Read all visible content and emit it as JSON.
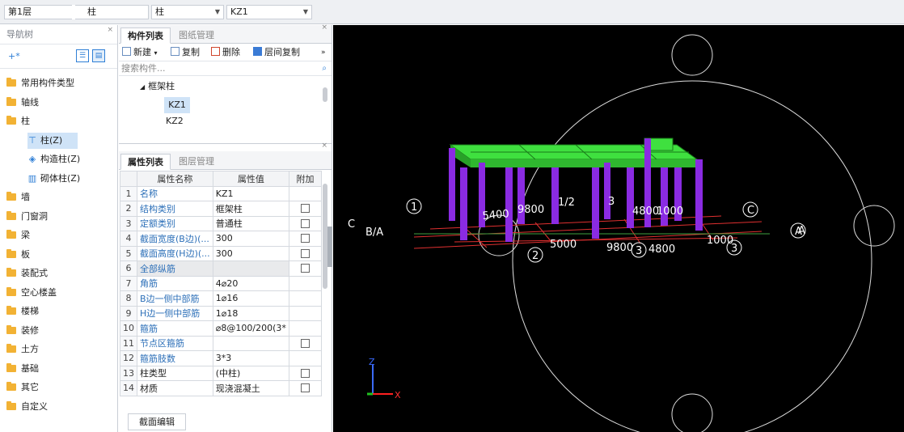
{
  "toolbar_top": {
    "floor": "第1层",
    "category": "柱",
    "type": "柱",
    "component": "KZ1"
  },
  "nav_panel": {
    "title": "导航树",
    "close": "×",
    "items": [
      {
        "label": "常用构件类型"
      },
      {
        "label": "轴线"
      },
      {
        "label": "柱"
      },
      {
        "label": "墙"
      },
      {
        "label": "门窗洞"
      },
      {
        "label": "梁"
      },
      {
        "label": "板"
      },
      {
        "label": "装配式"
      },
      {
        "label": "空心楼盖"
      },
      {
        "label": "楼梯"
      },
      {
        "label": "装修"
      },
      {
        "label": "土方"
      },
      {
        "label": "基础"
      },
      {
        "label": "其它"
      },
      {
        "label": "自定义"
      }
    ],
    "sub_items": [
      {
        "label": "柱(Z)",
        "icon": "column-icon"
      },
      {
        "label": "构造柱(Z)",
        "icon": "constructional-column-icon"
      },
      {
        "label": "砌体柱(Z)",
        "icon": "masonry-column-icon"
      }
    ]
  },
  "component_panel": {
    "tab_active": "构件列表",
    "tab_inactive": "图纸管理",
    "close": "×",
    "tb_new": "新建",
    "tb_copy": "复制",
    "tb_delete": "删除",
    "tb_layer_copy": "层间复制",
    "more": "»",
    "search_placeholder": "搜索构件...",
    "group": "框架柱",
    "items": [
      "KZ1",
      "KZ2"
    ]
  },
  "attr_panel": {
    "tab_active": "属性列表",
    "tab_inactive": "图层管理",
    "close": "×",
    "col_name": "属性名称",
    "col_value": "属性值",
    "col_extra": "附加",
    "rows": [
      {
        "n": "1",
        "name": "名称",
        "value": "KZ1"
      },
      {
        "n": "2",
        "name": "结构类别",
        "value": "框架柱"
      },
      {
        "n": "3",
        "name": "定额类别",
        "value": "普通柱"
      },
      {
        "n": "4",
        "name": "截面宽度(B边)(...",
        "value": "300"
      },
      {
        "n": "5",
        "name": "截面高度(H边)(...",
        "value": "300"
      },
      {
        "n": "6",
        "name": "全部纵筋",
        "value": ""
      },
      {
        "n": "7",
        "name": "角筋",
        "value": "4⌀20"
      },
      {
        "n": "8",
        "name": "B边一侧中部筋",
        "value": "1⌀16"
      },
      {
        "n": "9",
        "name": "H边一侧中部筋",
        "value": "1⌀18"
      },
      {
        "n": "10",
        "name": "箍筋",
        "value": "⌀8@100/200(3*"
      },
      {
        "n": "11",
        "name": "节点区箍筋",
        "value": ""
      },
      {
        "n": "12",
        "name": "箍筋肢数",
        "value": "3*3"
      },
      {
        "n": "13",
        "name": "柱类型",
        "value": "(中柱)"
      },
      {
        "n": "14",
        "name": "材质",
        "value": "现浇混凝土"
      }
    ],
    "section_edit": "截面编辑"
  },
  "viewport": {
    "axis_x": "X",
    "axis_z": "Z",
    "dims": [
      "5400",
      "9800",
      "1/2",
      "3",
      "4800",
      "1000",
      "5000",
      "9800",
      "4800",
      "1000",
      "B/A",
      "C",
      "A"
    ],
    "grid_labels": [
      "1",
      "2",
      "3",
      "1",
      "2",
      "3",
      "C",
      "B/A",
      "A"
    ],
    "colors": {
      "beam": "#3fe03f",
      "column": "#8a2be2",
      "grid_line": "#ff3030",
      "text": "#ffffff"
    }
  }
}
